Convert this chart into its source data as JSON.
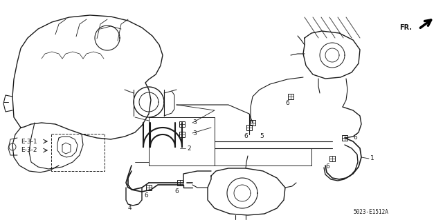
{
  "bg_color": "#ffffff",
  "fig_width": 6.4,
  "fig_height": 3.19,
  "dpi": 100,
  "diagram_code": "5023-E1512A",
  "line_color": "#1a1a1a",
  "text_color": "#1a1a1a",
  "font_size_labels": 6.5,
  "font_size_code": 5.5
}
